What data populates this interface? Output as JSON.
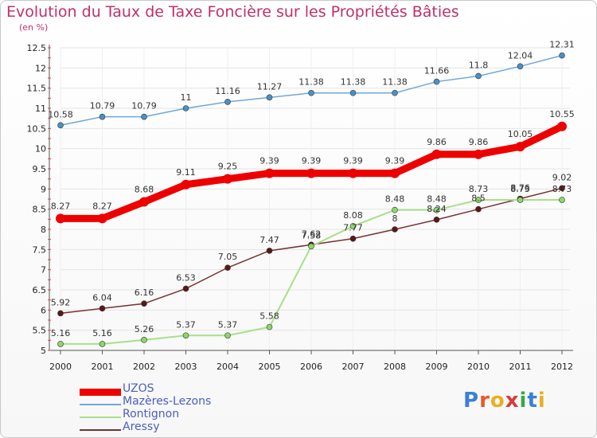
{
  "title": "Evolution du Taux de Taxe Foncière sur les Propriétés Bâties",
  "unit_label": "(en %)",
  "logo": "Proxiti",
  "chart_data": {
    "type": "line",
    "title": "Evolution du Taux de Taxe Foncière sur les Propriétés Bâties",
    "ylabel": "(en %)",
    "x": [
      "2000",
      "2001",
      "2002",
      "2003",
      "2004",
      "2005",
      "2006",
      "2007",
      "2008",
      "2009",
      "2010",
      "2011",
      "2012"
    ],
    "ylim": [
      5,
      12.5
    ],
    "yticks": [
      "5",
      "5.5",
      "6",
      "6.5",
      "7",
      "7.5",
      "8",
      "8.5",
      "9",
      "9.5",
      "10",
      "10.5",
      "11",
      "11.5",
      "12",
      "12.5"
    ],
    "legend_position": "bottom-left",
    "series": [
      {
        "name": "UZOS",
        "color": "#ee0000",
        "values": [
          8.27,
          8.27,
          8.68,
          9.11,
          9.25,
          9.39,
          9.39,
          9.39,
          9.39,
          9.86,
          9.86,
          10.05,
          10.55
        ]
      },
      {
        "name": "Mazères-Lezons",
        "color": "#6fa8d8",
        "values": [
          10.58,
          10.79,
          10.79,
          11,
          11.16,
          11.27,
          11.38,
          11.38,
          11.38,
          11.66,
          11.8,
          12.04,
          12.31
        ]
      },
      {
        "name": "Rontignon",
        "color": "#a8e08a",
        "values": [
          5.16,
          5.16,
          5.26,
          5.37,
          5.37,
          5.58,
          7.58,
          8.08,
          8.48,
          8.48,
          8.73,
          8.73,
          8.73
        ]
      },
      {
        "name": "Aressy",
        "color": "#7a3030",
        "values": [
          5.92,
          6.04,
          6.16,
          6.53,
          7.05,
          7.47,
          7.62,
          7.77,
          8,
          8.24,
          8.5,
          8.76,
          9.02
        ]
      }
    ],
    "labels": [
      [
        "8.27",
        "8.27",
        "8.68",
        "9.11",
        "9.25",
        "9.39",
        "9.39",
        "9.39",
        "9.39",
        "9.86",
        "9.86",
        "10.05",
        "10.55"
      ],
      [
        "10.58",
        "10.79",
        "10.79",
        "11",
        "11.16",
        "11.27",
        "11.38",
        "11.38",
        "11.38",
        "11.66",
        "11.8",
        "12.04",
        "12.31"
      ],
      [
        "5.16",
        "5.16",
        "5.26",
        "5.37",
        "5.37",
        "5.58",
        "7.58",
        "8.08",
        "8.48",
        "8.48",
        "8.73",
        "8.73",
        "8.73"
      ],
      [
        "5.92",
        "6.04",
        "6.16",
        "6.53",
        "7.05",
        "7.47",
        "7.62",
        "7.77",
        "8",
        "8.24",
        "8.5",
        "8.76",
        "9.02"
      ]
    ]
  }
}
